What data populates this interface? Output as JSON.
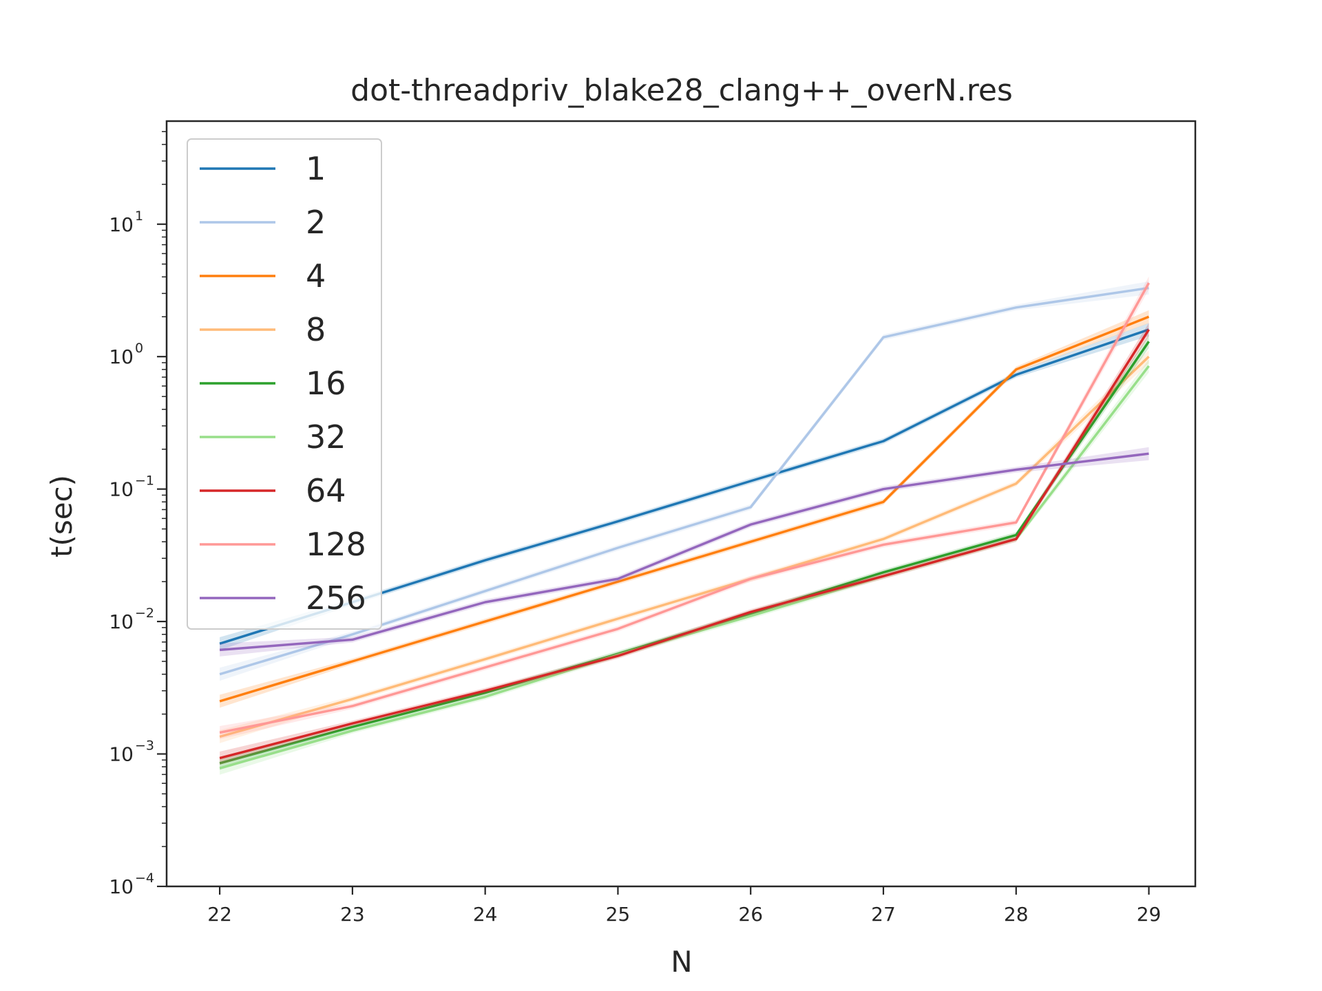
{
  "chart_data": {
    "type": "line",
    "title": "dot-threadpriv_blake28_clang++_overN.res",
    "xlabel": "N",
    "ylabel": "t(sec)",
    "yscale": "log",
    "x": [
      22,
      23,
      24,
      25,
      26,
      27,
      28,
      29
    ],
    "xlim": [
      21.6,
      29.35
    ],
    "ylim": [
      0.0001,
      60
    ],
    "y_ticks": [
      {
        "value": 0.0001,
        "base": "10",
        "exp": "−4"
      },
      {
        "value": 0.001,
        "base": "10",
        "exp": "−3"
      },
      {
        "value": 0.01,
        "base": "10",
        "exp": "−2"
      },
      {
        "value": 0.1,
        "base": "10",
        "exp": "−1"
      },
      {
        "value": 1,
        "base": "10",
        "exp": "0"
      },
      {
        "value": 10,
        "base": "10",
        "exp": "1"
      }
    ],
    "x_tick_labels": [
      "22",
      "23",
      "24",
      "25",
      "26",
      "27",
      "28",
      "29"
    ],
    "legend_position": "top-left",
    "grid": false,
    "series": [
      {
        "name": "1",
        "color": "#1f77b4",
        "values": [
          0.0068,
          0.014,
          0.029,
          0.057,
          0.115,
          0.23,
          0.73,
          1.6
        ]
      },
      {
        "name": "2",
        "color": "#aec7e8",
        "values": [
          0.004,
          0.008,
          0.017,
          0.036,
          0.073,
          1.4,
          2.35,
          3.3
        ]
      },
      {
        "name": "4",
        "color": "#ff7f0e",
        "values": [
          0.0025,
          0.005,
          0.01,
          0.02,
          0.04,
          0.08,
          0.8,
          2.0
        ]
      },
      {
        "name": "8",
        "color": "#ffbb78",
        "values": [
          0.00135,
          0.0026,
          0.0052,
          0.0105,
          0.021,
          0.042,
          0.11,
          1.0
        ]
      },
      {
        "name": "16",
        "color": "#2ca02c",
        "values": [
          0.00085,
          0.0016,
          0.0029,
          0.0057,
          0.0115,
          0.0235,
          0.045,
          1.3
        ]
      },
      {
        "name": "32",
        "color": "#98df8a",
        "values": [
          0.00078,
          0.0015,
          0.0027,
          0.0056,
          0.011,
          0.022,
          0.042,
          0.85
        ]
      },
      {
        "name": "64",
        "color": "#d62728",
        "values": [
          0.00093,
          0.0017,
          0.003,
          0.0055,
          0.0118,
          0.022,
          0.042,
          1.6
        ]
      },
      {
        "name": "128",
        "color": "#ff9896",
        "values": [
          0.00145,
          0.0023,
          0.0045,
          0.0088,
          0.021,
          0.038,
          0.056,
          3.6
        ]
      },
      {
        "name": "256",
        "color": "#9467bd",
        "values": [
          0.0061,
          0.0073,
          0.014,
          0.021,
          0.054,
          0.1,
          0.14,
          0.185
        ]
      }
    ]
  }
}
